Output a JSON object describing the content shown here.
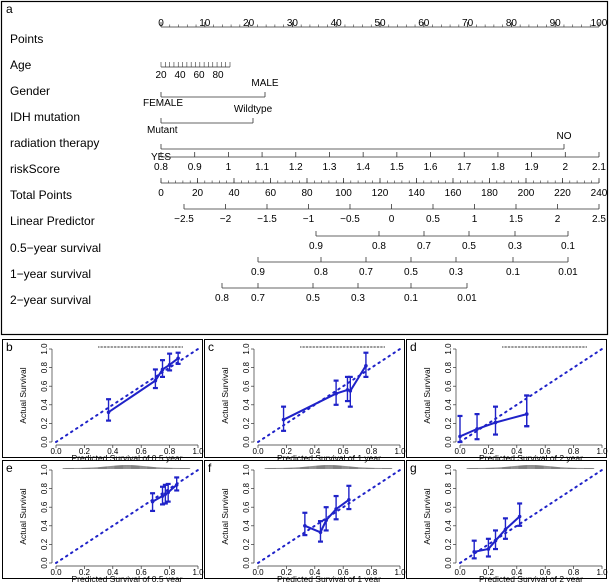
{
  "panel_a": {
    "label": "a",
    "rows": [
      {
        "label": "Points",
        "kind": "scale",
        "ticks": [
          "0",
          "10",
          "20",
          "30",
          "40",
          "50",
          "60",
          "70",
          "80",
          "90",
          "100"
        ]
      },
      {
        "label": "Age",
        "kind": "age",
        "ticks": [
          "20",
          "40",
          "60",
          "80"
        ]
      },
      {
        "label": "Gender",
        "kind": "pair",
        "low": "FEMALE",
        "high": "MALE"
      },
      {
        "label": "IDH mutation",
        "kind": "pair",
        "low": "Mutant",
        "high": "Wildtype"
      },
      {
        "label": "radiation therapy",
        "kind": "pair",
        "low": "YES",
        "high": "NO"
      },
      {
        "label": "riskScore",
        "kind": "scale",
        "ticks": [
          "0.8",
          "0.9",
          "1",
          "1.1",
          "1.2",
          "1.3",
          "1.4",
          "1.5",
          "1.6",
          "1.7",
          "1.8",
          "1.9",
          "2",
          "2.1"
        ]
      },
      {
        "label": "Total Points",
        "kind": "scale",
        "ticks": [
          "0",
          "20",
          "40",
          "60",
          "80",
          "100",
          "120",
          "140",
          "160",
          "180",
          "200",
          "220",
          "240"
        ]
      },
      {
        "label": "Linear Predictor",
        "kind": "scale",
        "ticks": [
          "−2.5",
          "−2",
          "−1.5",
          "−1",
          "−0.5",
          "0",
          "0.5",
          "1",
          "1.5",
          "2",
          "2.5"
        ]
      },
      {
        "label": "0.5−year survival",
        "kind": "scale",
        "ticks": [
          "0.9",
          "0.8",
          "0.7",
          "0.5",
          "0.3",
          "0.1"
        ]
      },
      {
        "label": "1−year survival",
        "kind": "scale",
        "ticks": [
          "0.9",
          "0.8",
          "0.7",
          "0.5",
          "0.3",
          "0.1",
          "0.01"
        ]
      },
      {
        "label": "2−year survival",
        "kind": "scale",
        "ticks": [
          "0.8",
          "0.7",
          "0.5",
          "0.3",
          "0.1",
          "0.01"
        ]
      }
    ]
  },
  "chart_data": [
    {
      "label": "b",
      "type": "line",
      "xlabel": "Predicted Survival of 0.5 year",
      "ylabel": "Actual Survival",
      "xticks": [
        "0.0",
        "0.2",
        "0.4",
        "0.6",
        "0.8",
        "1.0"
      ],
      "yticks": [
        "0.0",
        "0.2",
        "0.4",
        "0.6",
        "0.8",
        "1.0"
      ],
      "xlim": [
        0,
        1
      ],
      "ylim": [
        0,
        1
      ],
      "rug": "sparse",
      "series": [
        {
          "x": [
            0.37,
            0.7,
            0.75,
            0.8,
            0.86
          ],
          "y": [
            0.32,
            0.66,
            0.78,
            0.83,
            0.9
          ]
        }
      ],
      "error_low": [
        0.23,
        0.58,
        0.7,
        0.77,
        0.84
      ],
      "error_high": [
        0.46,
        0.78,
        0.88,
        0.95,
        0.96
      ],
      "reference_line": "diagonal"
    },
    {
      "label": "c",
      "type": "line",
      "xlabel": "Predicted Survival of 1 year",
      "ylabel": "Actual Survival",
      "xticks": [
        "0.0",
        "0.2",
        "0.4",
        "0.6",
        "0.8",
        "1.0"
      ],
      "yticks": [
        "0.0",
        "0.2",
        "0.4",
        "0.6",
        "0.8",
        "1.0"
      ],
      "xlim": [
        0,
        1
      ],
      "ylim": [
        0,
        1
      ],
      "rug": "sparse",
      "series": [
        {
          "x": [
            0.18,
            0.55,
            0.63,
            0.65,
            0.76
          ],
          "y": [
            0.24,
            0.52,
            0.56,
            0.55,
            0.82
          ]
        }
      ],
      "error_low": [
        0.12,
        0.4,
        0.44,
        0.38,
        0.7
      ],
      "error_high": [
        0.38,
        0.66,
        0.7,
        0.7,
        0.96
      ],
      "reference_line": "diagonal"
    },
    {
      "label": "d",
      "type": "line",
      "xlabel": "Predicted Survival of 2 year",
      "ylabel": "Actual Survival",
      "xticks": [
        "0.0",
        "0.2",
        "0.4",
        "0.6",
        "0.8",
        "1.0"
      ],
      "yticks": [
        "0.0",
        "0.2",
        "0.4",
        "0.6",
        "0.8",
        "1.0"
      ],
      "xlim": [
        0,
        1
      ],
      "ylim": [
        0,
        1
      ],
      "rug": "sparse",
      "series": [
        {
          "x": [
            0.0,
            0.12,
            0.25,
            0.47,
            0.47
          ],
          "y": [
            0.06,
            0.14,
            0.21,
            0.3,
            0.3
          ]
        }
      ],
      "error_low": [
        0.0,
        0.03,
        0.08,
        0.17,
        0.17
      ],
      "error_high": [
        0.28,
        0.3,
        0.38,
        0.5,
        0.5
      ],
      "reference_line": "diagonal"
    },
    {
      "label": "e",
      "type": "line",
      "xlabel": "Predicted Survival of 0.5 year",
      "ylabel": "Actual Survival",
      "xticks": [
        "0.0",
        "0.2",
        "0.4",
        "0.6",
        "0.8",
        "1.0"
      ],
      "yticks": [
        "0.0",
        "0.2",
        "0.4",
        "0.6",
        "0.8",
        "1.0"
      ],
      "xlim": [
        0,
        1
      ],
      "ylim": [
        0,
        1
      ],
      "rug": "dense",
      "series": [
        {
          "x": [
            0.68,
            0.75,
            0.77,
            0.79,
            0.85
          ],
          "y": [
            0.66,
            0.72,
            0.74,
            0.76,
            0.84
          ]
        }
      ],
      "error_low": [
        0.56,
        0.63,
        0.64,
        0.66,
        0.78
      ],
      "error_high": [
        0.75,
        0.82,
        0.84,
        0.85,
        0.92
      ],
      "reference_line": "diagonal"
    },
    {
      "label": "f",
      "type": "line",
      "xlabel": "Predicted Survival of 1 year",
      "ylabel": "Actual Survival",
      "xticks": [
        "0.0",
        "0.2",
        "0.4",
        "0.6",
        "0.8",
        "1.0"
      ],
      "yticks": [
        "0.0",
        "0.2",
        "0.4",
        "0.6",
        "0.8",
        "1.0"
      ],
      "xlim": [
        0,
        1
      ],
      "ylim": [
        0,
        1
      ],
      "rug": "dense",
      "series": [
        {
          "x": [
            0.33,
            0.44,
            0.48,
            0.55,
            0.64
          ],
          "y": [
            0.4,
            0.33,
            0.46,
            0.58,
            0.68
          ]
        }
      ],
      "error_low": [
        0.3,
        0.23,
        0.35,
        0.47,
        0.58
      ],
      "error_high": [
        0.54,
        0.45,
        0.6,
        0.72,
        0.83
      ],
      "reference_line": "diagonal"
    },
    {
      "label": "g",
      "type": "line",
      "xlabel": "Predicted Survival of 2 year",
      "ylabel": "Actual Survival",
      "xticks": [
        "0.0",
        "0.2",
        "0.4",
        "0.6",
        "0.8",
        "1.0"
      ],
      "yticks": [
        "0.0",
        "0.2",
        "0.4",
        "0.6",
        "0.8",
        "1.0"
      ],
      "xlim": [
        0,
        1
      ],
      "ylim": [
        0,
        1
      ],
      "rug": "dense",
      "series": [
        {
          "x": [
            0.1,
            0.2,
            0.25,
            0.32,
            0.42
          ],
          "y": [
            0.12,
            0.15,
            0.24,
            0.36,
            0.5
          ]
        }
      ],
      "error_low": [
        0.05,
        0.07,
        0.15,
        0.26,
        0.4
      ],
      "error_high": [
        0.24,
        0.26,
        0.35,
        0.48,
        0.64
      ],
      "reference_line": "diagonal"
    }
  ],
  "colors": {
    "line": "#1f22c8",
    "frame": "#000000",
    "axis": "#333333"
  }
}
